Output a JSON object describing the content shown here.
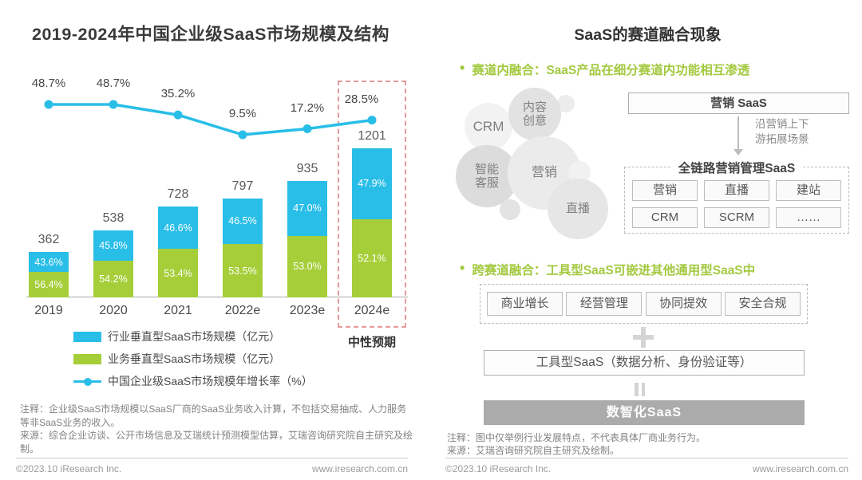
{
  "page": {
    "left": {
      "title": "2019-2024年中国企业级SaaS市场规模及结构",
      "neutral_label": "中性预期",
      "legend": [
        {
          "label": "行业垂直型SaaS市场规模（亿元）",
          "marker": "swatch"
        },
        {
          "label": "业务垂直型SaaS市场规模（亿元）",
          "marker": "swatch"
        },
        {
          "label": "中国企业级SaaS市场规模年增长率（%）",
          "marker": "line-dot"
        }
      ],
      "note": "注释：企业级SaaS市场规模以SaaS厂商的SaaS业务收入计算，不包括交易抽成、人力服务等非SaaS业务的收入。",
      "source": "来源：综合企业访谈、公开市场信息及艾瑞统计预测模型估算，艾瑞咨询研究院自主研究及绘制。",
      "footer": {
        "copyright": "©2023.10 iResearch Inc.",
        "site": "www.iresearch.com.cn"
      }
    },
    "right": {
      "title": "SaaS的赛道融合现象",
      "accent_color": "#a3c940",
      "bullet1": "赛道内融合：SaaS产品在细分赛道内功能相互渗透",
      "bullet2": "跨赛道融合：工具型SaaS可嵌进其他通用型SaaS中",
      "bubbles": [
        "内容\n创意",
        "CRM",
        "智能\n客服",
        "营销",
        "直播"
      ],
      "marketing_box": "营销 SaaS",
      "arrow_label": "沿营销上下\n游拓展场景",
      "funnel": {
        "title": "全链路营销管理SaaS",
        "items": [
          "营销",
          "直播",
          "建站",
          "CRM",
          "SCRM",
          "……"
        ]
      },
      "general_boxes": [
        "商业增长",
        "经营管理",
        "协同提效",
        "安全合规"
      ],
      "tool_box": "工具型SaaS（数据分析、身份验证等）",
      "result_box": "数智化SaaS",
      "note": "注释：图中仅举例行业发展特点，不代表具体厂商业务行为。",
      "source": "来源：艾瑞咨询研究院自主研究及绘制。",
      "footer": {
        "copyright": "©2023.10 iResearch Inc.",
        "site": "www.iresearch.com.cn"
      }
    }
  },
  "chart_data": {
    "type": "bar",
    "subtype": "stacked-bars-with-growth-line",
    "title": "2019-2024年中国企业级SaaS市场规模及结构",
    "categories": [
      "2019",
      "2020",
      "2021",
      "2022e",
      "2023e",
      "2024e"
    ],
    "totals": [
      362,
      538,
      728,
      797,
      935,
      1201
    ],
    "totals_unit": "亿元",
    "series": [
      {
        "name": "行业垂直型SaaS市场规模（亿元）",
        "unit": "% of total",
        "values": [
          43.6,
          45.8,
          46.6,
          46.5,
          47.0,
          47.9
        ],
        "color": "#29bee8"
      },
      {
        "name": "业务垂直型SaaS市场规模（亿元）",
        "unit": "% of total",
        "values": [
          56.4,
          54.2,
          53.4,
          53.5,
          53.0,
          52.1
        ],
        "color": "#a5ce39"
      }
    ],
    "line": {
      "name": "中国企业级SaaS市场规模年增长率（%）",
      "values": [
        48.7,
        48.7,
        35.2,
        9.5,
        17.2,
        28.5
      ],
      "color": "#29bee8"
    },
    "highlight": {
      "category": "2024e",
      "label": "中性预期",
      "box_color": "#e39a9a"
    },
    "grid": false,
    "y_axis_visible": false,
    "legend_position": "bottom"
  }
}
